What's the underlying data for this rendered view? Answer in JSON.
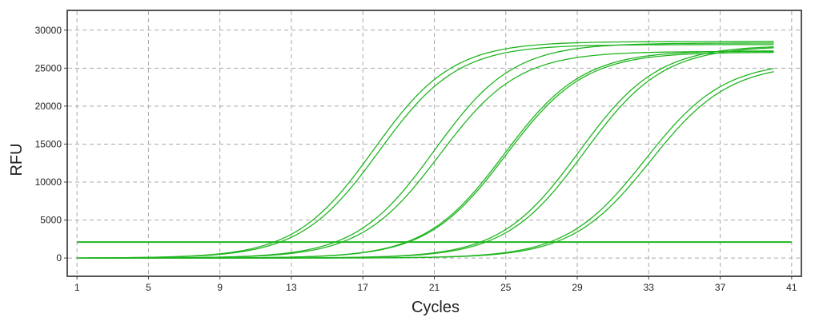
{
  "chart_data": {
    "type": "line",
    "title": "",
    "xlabel": "Cycles",
    "ylabel": "RFU",
    "xlim": [
      0.5,
      41.5
    ],
    "ylim": [
      -2300,
      32500
    ],
    "x_ticks": [
      1,
      5,
      9,
      13,
      17,
      21,
      25,
      29,
      33,
      37,
      41
    ],
    "y_ticks": [
      0,
      5000,
      10000,
      15000,
      20000,
      25000,
      30000
    ],
    "x_tick_labels": [
      "1",
      "5",
      "9",
      "13",
      "17",
      "21",
      "25",
      "29",
      "33",
      "37",
      "41"
    ],
    "y_tick_labels": [
      "0",
      "5000",
      "10000",
      "15000",
      "20000",
      "25000",
      "30000"
    ],
    "grid": true,
    "legend": "none",
    "color": "#1fb51f",
    "threshold": {
      "y": 2100,
      "x_start": 1,
      "x_end": 41
    },
    "cycles": [
      1,
      40
    ],
    "series": [
      {
        "max": 28500,
        "mid": 17.6,
        "slope": 2.2
      },
      {
        "max": 28100,
        "mid": 17.9,
        "slope": 2.2
      },
      {
        "max": 28300,
        "mid": 21.0,
        "slope": 2.2
      },
      {
        "max": 27200,
        "mid": 21.3,
        "slope": 2.2
      },
      {
        "max": 27300,
        "mid": 24.9,
        "slope": 2.2
      },
      {
        "max": 27100,
        "mid": 25.0,
        "slope": 2.2
      },
      {
        "max": 28000,
        "mid": 29.1,
        "slope": 2.2
      },
      {
        "max": 27900,
        "mid": 29.4,
        "slope": 2.2
      },
      {
        "max": 25900,
        "mid": 32.8,
        "slope": 2.2
      },
      {
        "max": 25600,
        "mid": 33.1,
        "slope": 2.2
      }
    ]
  }
}
